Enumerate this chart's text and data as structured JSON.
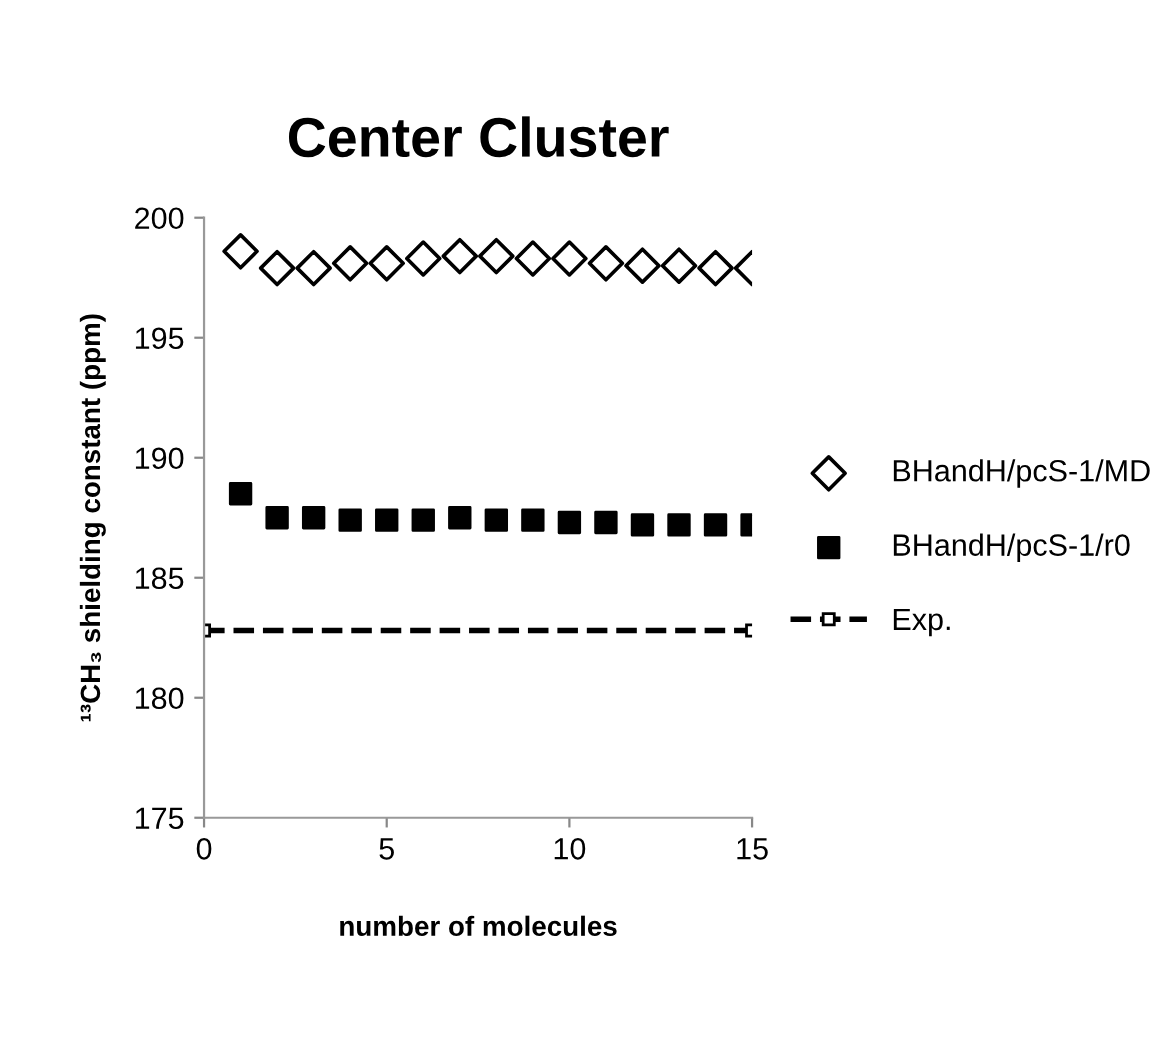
{
  "chart_data": {
    "type": "scatter",
    "title": "Center Cluster",
    "xlabel": "number of molecules",
    "ylabel": "¹³CH₃ shielding constant (ppm)",
    "xlim": [
      0,
      15
    ],
    "xticks": [
      0,
      5,
      10,
      15
    ],
    "ylim": [
      175,
      200
    ],
    "yticks": [
      175,
      180,
      185,
      190,
      195,
      200
    ],
    "grid": false,
    "legend": "right",
    "series": [
      {
        "name": "BHandH/pcS-1/MD",
        "color": "#000000",
        "marker": "diamond",
        "x": [
          1,
          2,
          3,
          4,
          5,
          6,
          7,
          8,
          9,
          10,
          11,
          12,
          13,
          14,
          15
        ],
        "values": [
          198.6,
          197.9,
          197.9,
          198.1,
          198.1,
          198.3,
          198.4,
          198.4,
          198.3,
          198.3,
          198.1,
          198.0,
          198.0,
          197.9,
          197.9
        ]
      },
      {
        "name": "BHandH/pcS-1/r0",
        "color": "#000000",
        "marker": "square",
        "x": [
          1,
          2,
          3,
          4,
          5,
          6,
          7,
          8,
          9,
          10,
          11,
          12,
          13,
          14,
          15
        ],
        "values": [
          188.5,
          187.5,
          187.5,
          187.4,
          187.4,
          187.4,
          187.5,
          187.4,
          187.4,
          187.3,
          187.3,
          187.2,
          187.2,
          187.2,
          187.2
        ]
      },
      {
        "name": "Exp.",
        "type": "line",
        "color": "#000000",
        "marker": "square",
        "line_style": "dashed",
        "x": [
          0,
          15
        ],
        "values": [
          182.8,
          182.8
        ]
      }
    ]
  }
}
